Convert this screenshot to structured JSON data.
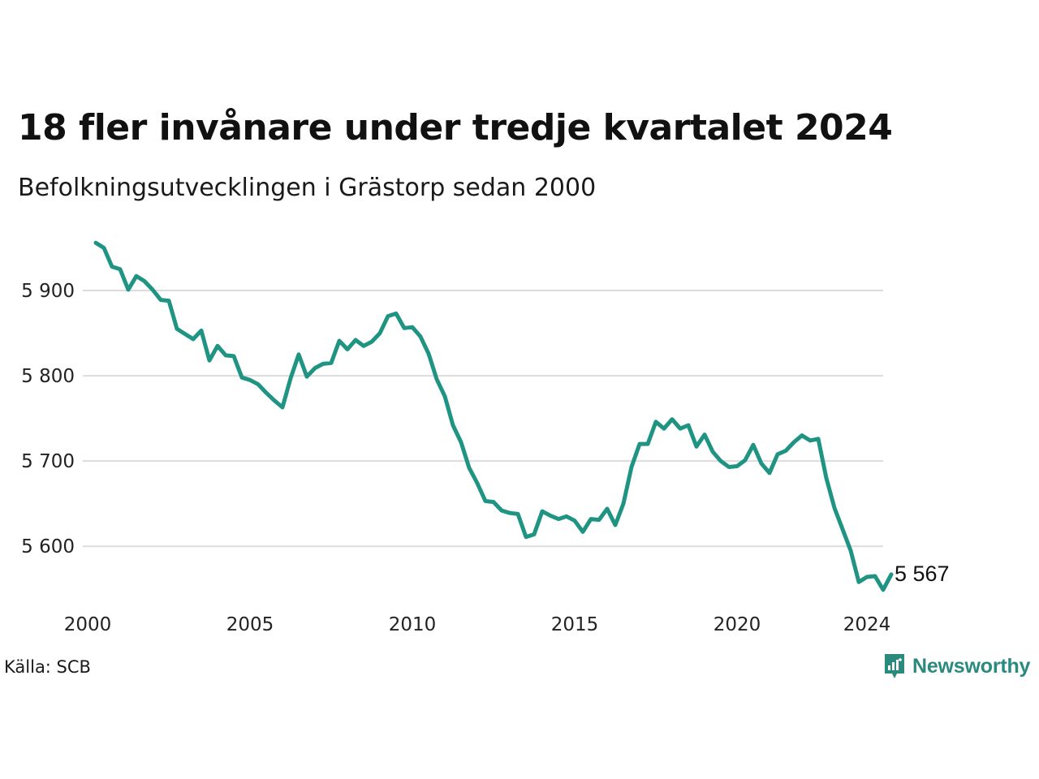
{
  "title": "18 fler invånare under tredje kvartalet 2024",
  "subtitle": "Befolkningsutvecklingen i Grästorp sedan 2000",
  "source": "Källa: SCB",
  "brand": {
    "name": "Newsworthy",
    "icon": "newsworthy-logo-icon",
    "color": "#2a8a7e"
  },
  "colors": {
    "line": "#1f9483",
    "grid": "#dcdcdc"
  },
  "chart_data": {
    "type": "line",
    "title": "18 fler invånare under tredje kvartalet 2024",
    "subtitle": "Befolkningsutvecklingen i Grästorp sedan 2000",
    "xlabel": "",
    "ylabel": "",
    "xlim": [
      2000,
      2024.5
    ],
    "ylim": [
      5545,
      5960
    ],
    "x_ticks": [
      2000,
      2005,
      2010,
      2015,
      2020,
      2024
    ],
    "x_tick_labels": [
      "2000",
      "2005",
      "2010",
      "2015",
      "2020",
      "2024"
    ],
    "y_ticks": [
      5600,
      5700,
      5800,
      5900
    ],
    "y_tick_labels": [
      "5 600",
      "5 700",
      "5 800",
      "5 900"
    ],
    "grid": "horizontal",
    "end_label": "5 567",
    "series": [
      {
        "x_start": 2000.25,
        "x_step": 0.25,
        "values": [
          5956,
          5950,
          5928,
          5925,
          5901,
          5917,
          5911,
          5901,
          5889,
          5888,
          5855,
          5849,
          5843,
          5853,
          5818,
          5835,
          5824,
          5823,
          5798,
          5795,
          5790,
          5780,
          5771,
          5763,
          5797,
          5825,
          5799,
          5809,
          5814,
          5815,
          5841,
          5831,
          5842,
          5835,
          5840,
          5850,
          5870,
          5873,
          5856,
          5857,
          5846,
          5826,
          5796,
          5776,
          5742,
          5722,
          5692,
          5674,
          5653,
          5652,
          5642,
          5639,
          5638,
          5611,
          5614,
          5641,
          5636,
          5632,
          5635,
          5630,
          5617,
          5632,
          5631,
          5644,
          5625,
          5650,
          5693,
          5720,
          5720,
          5746,
          5738,
          5749,
          5738,
          5742,
          5717,
          5731,
          5711,
          5700,
          5693,
          5694,
          5701,
          5719,
          5697,
          5686,
          5708,
          5712,
          5722,
          5730,
          5724,
          5726,
          5680,
          5645,
          5620,
          5595,
          5558,
          5564,
          5565,
          5549,
          5567
        ]
      }
    ]
  }
}
